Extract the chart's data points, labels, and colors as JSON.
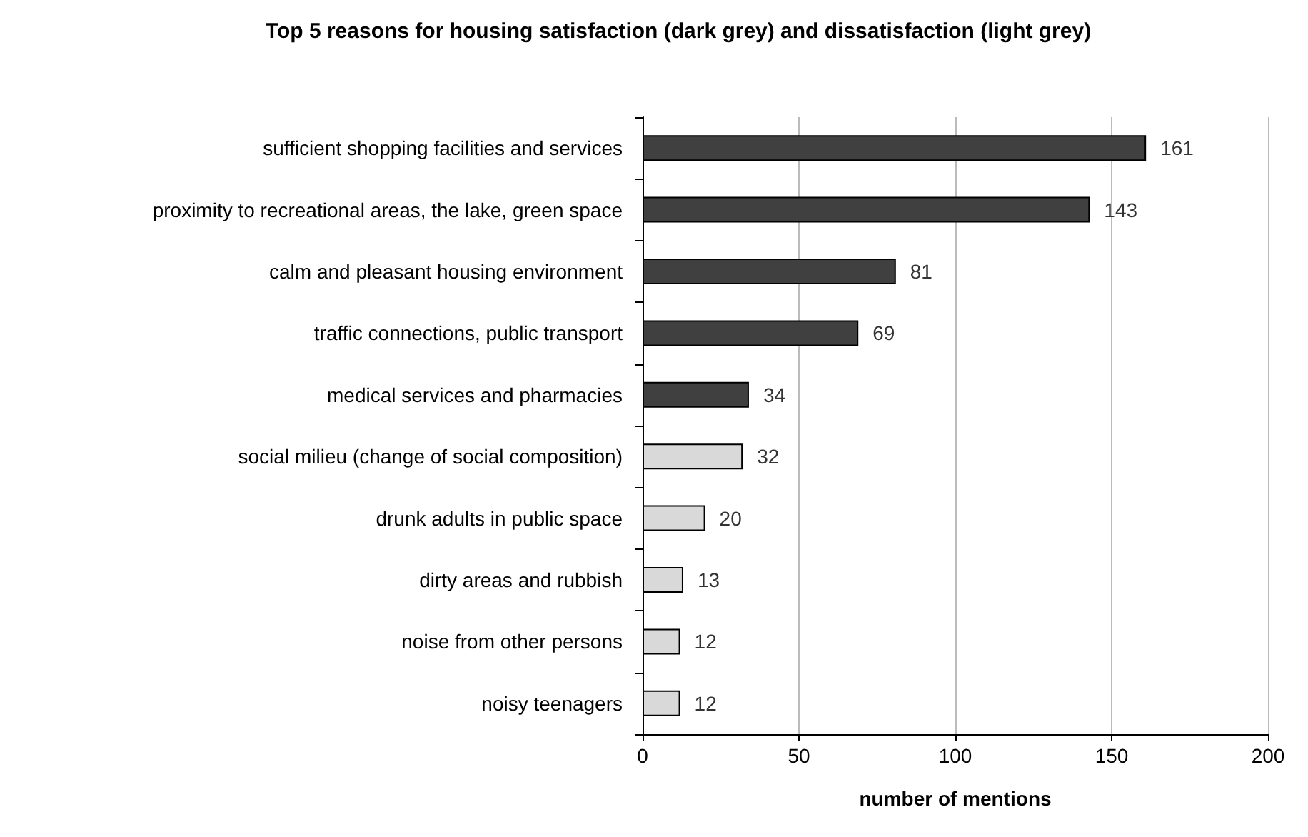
{
  "chart_data": {
    "type": "bar",
    "orientation": "horizontal",
    "title": "Top 5 reasons for housing satisfaction (dark grey) and dissatisfaction (light grey)",
    "xlabel": "number of mentions",
    "categories": [
      "sufficient shopping facilities and services",
      "proximity to recreational areas, the lake, green space",
      "calm and pleasant housing environment",
      "traffic connections, public transport",
      "medical services and pharmacies",
      "social milieu (change of social composition)",
      "drunk adults in public space",
      "dirty areas and rubbish",
      "noise from other persons",
      "noisy teenagers"
    ],
    "values": [
      161,
      143,
      81,
      69,
      34,
      32,
      20,
      13,
      12,
      12
    ],
    "colors": [
      "#404040",
      "#404040",
      "#404040",
      "#404040",
      "#404040",
      "#d9d9d9",
      "#d9d9d9",
      "#d9d9d9",
      "#d9d9d9",
      "#d9d9d9"
    ],
    "xlim": [
      0,
      200
    ],
    "xticks": [
      0,
      50,
      100,
      150,
      200
    ],
    "grid": "x",
    "data_labels": true
  }
}
